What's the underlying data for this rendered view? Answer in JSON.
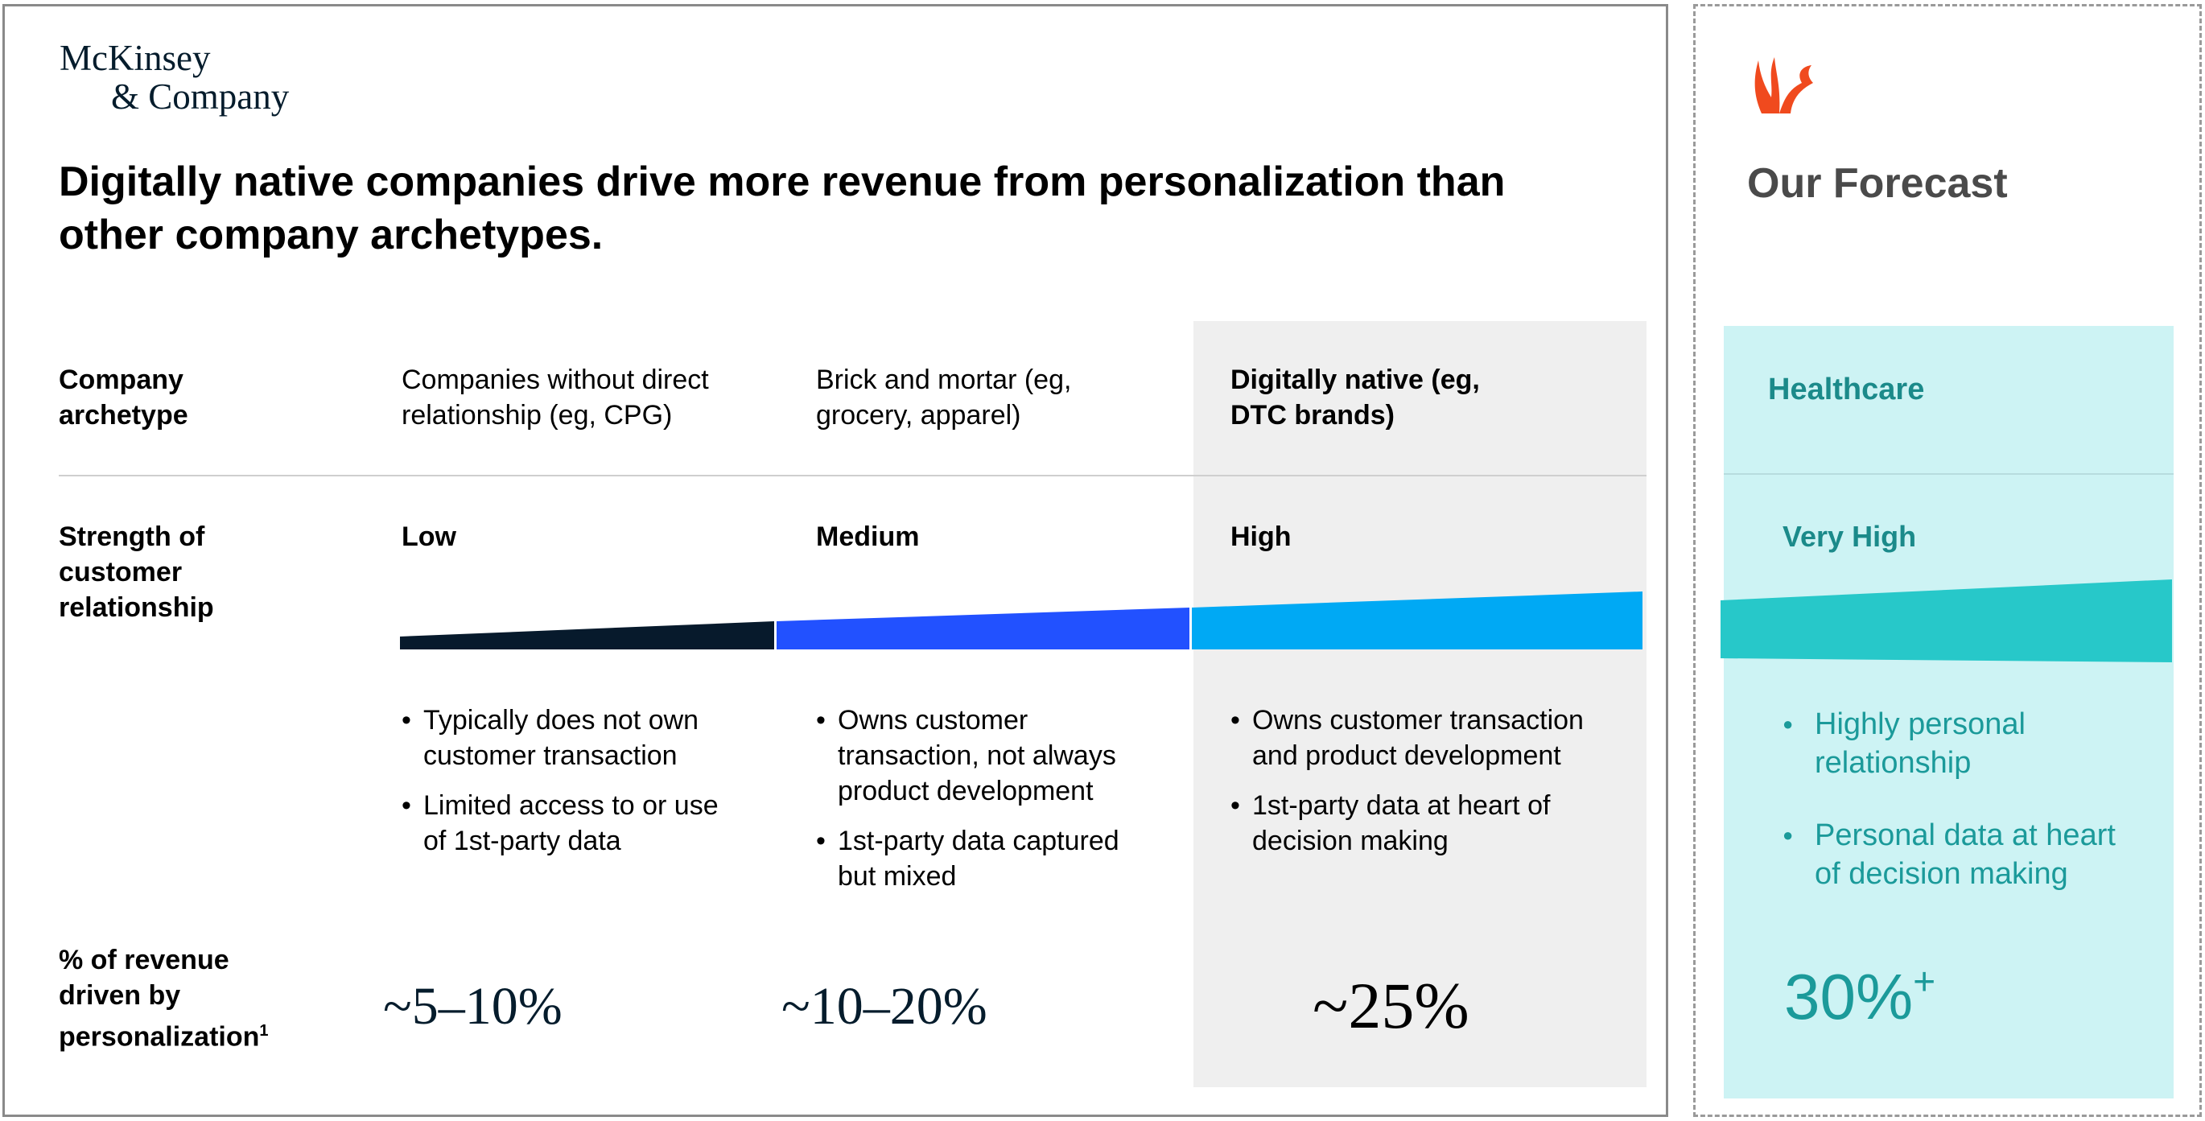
{
  "logo": {
    "line1": "McKinsey",
    "line2": "& Company"
  },
  "headline": "Digitally native companies drive more revenue from personalization than other company archetypes.",
  "rows": {
    "archetype": "Company archetype",
    "strength": "Strength of customer relationship",
    "revenue": "% of revenue driven by personalization",
    "revenue_footnote": "1"
  },
  "columns": [
    {
      "archetype": "Companies without direct relationship (eg, CPG)",
      "strength": "Low",
      "bullets": [
        "Typically does not own customer transaction",
        "Limited access to or use of 1st-party data"
      ],
      "revenue": "~5–10%"
    },
    {
      "archetype": "Brick and mortar (eg, grocery, apparel)",
      "strength": "Medium",
      "bullets": [
        "Owns customer transaction, not always product development",
        "1st-party data captured but mixed"
      ],
      "revenue": "~10–20%"
    },
    {
      "archetype": "Digitally native (eg, DTC brands)",
      "strength": "High",
      "bullets": [
        "Owns customer transaction and product development",
        "1st-party data at heart of decision making"
      ],
      "revenue": "~25%"
    }
  ],
  "colors": {
    "low": "#071a2c",
    "medium": "#2251ff",
    "high": "#00a9f4",
    "forecast": "#27c8c9",
    "forecast_text": "#1b9a9a",
    "brand_icon": "#f04a1e"
  },
  "forecast": {
    "title": "Our Forecast",
    "sector": "Healthcare",
    "strength": "Very High",
    "bullets": [
      "Highly personal relationship",
      "Personal data at heart of decision making"
    ],
    "revenue_main": "30%",
    "revenue_suffix": "+"
  }
}
